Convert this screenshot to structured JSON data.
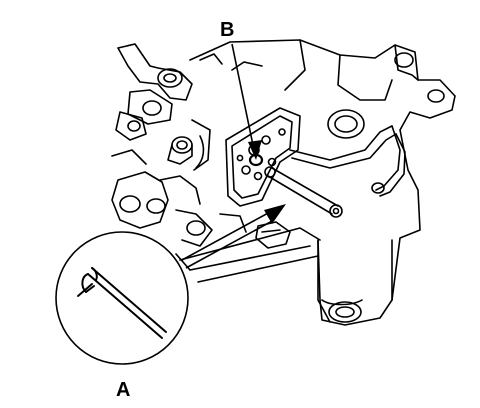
{
  "diagram": {
    "callouts": {
      "a": "A",
      "b": "B"
    },
    "colors": {
      "line": "#000000",
      "background": "#ffffff"
    }
  }
}
